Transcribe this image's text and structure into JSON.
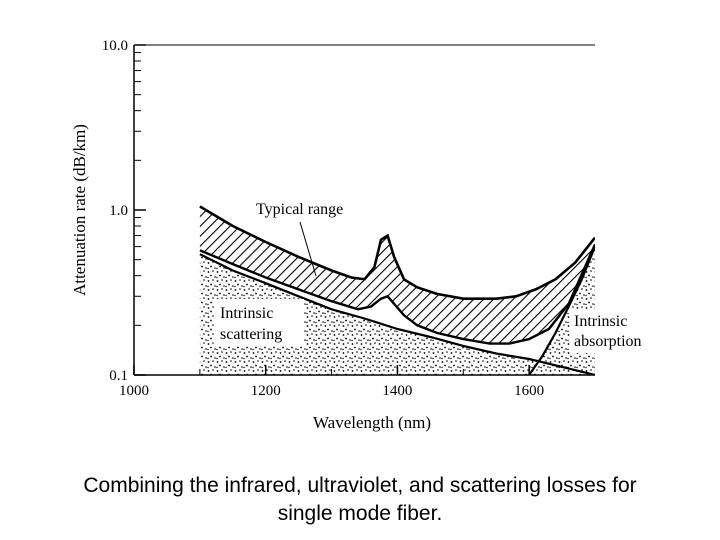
{
  "chart_data": {
    "type": "line",
    "yscale": "log",
    "xlim": [
      1000,
      1700
    ],
    "ylim": [
      0.1,
      10.0
    ],
    "xlabel": "Wavelength (nm)",
    "ylabel": "Attenuation rate (dB/km)",
    "x_ticks": [
      1000,
      1200,
      1400,
      1600
    ],
    "x_tick_labels": [
      "1000",
      "1200",
      "1400",
      "1600"
    ],
    "y_ticks": [
      0.1,
      1.0,
      10.0
    ],
    "y_tick_labels": [
      "0.1",
      "1.0",
      "10.0"
    ],
    "grid": false,
    "series": [
      {
        "name": "Typical range (upper bound)",
        "x": [
          1100,
          1150,
          1200,
          1250,
          1300,
          1330,
          1350,
          1365,
          1375,
          1385,
          1395,
          1410,
          1430,
          1460,
          1500,
          1550,
          1580,
          1610,
          1640,
          1670,
          1700
        ],
        "y": [
          1.05,
          0.8,
          0.64,
          0.52,
          0.43,
          0.39,
          0.38,
          0.45,
          0.66,
          0.7,
          0.52,
          0.38,
          0.34,
          0.31,
          0.29,
          0.29,
          0.3,
          0.33,
          0.38,
          0.48,
          0.68
        ]
      },
      {
        "name": "Typical range (lower bound)",
        "x": [
          1100,
          1150,
          1200,
          1250,
          1300,
          1340,
          1360,
          1375,
          1385,
          1395,
          1410,
          1430,
          1460,
          1500,
          1540,
          1570,
          1600,
          1630,
          1660,
          1700
        ],
        "y": [
          0.57,
          0.47,
          0.39,
          0.33,
          0.28,
          0.25,
          0.26,
          0.29,
          0.3,
          0.27,
          0.23,
          0.2,
          0.18,
          0.165,
          0.155,
          0.155,
          0.165,
          0.19,
          0.27,
          0.62
        ]
      },
      {
        "name": "Intrinsic scattering",
        "x": [
          1100,
          1150,
          1200,
          1250,
          1300,
          1350,
          1400,
          1450,
          1500,
          1550,
          1600,
          1650,
          1700
        ],
        "y": [
          0.54,
          0.43,
          0.36,
          0.3,
          0.25,
          0.22,
          0.19,
          0.17,
          0.15,
          0.135,
          0.125,
          0.112,
          0.1
        ]
      },
      {
        "name": "Intrinsic absorption",
        "x": [
          1600,
          1620,
          1640,
          1660,
          1680,
          1700
        ],
        "y": [
          0.1,
          0.13,
          0.18,
          0.26,
          0.38,
          0.6
        ]
      }
    ],
    "annotations": [
      {
        "text": "Typical range"
      },
      {
        "text": "Intrinsic",
        "text2": "scattering"
      },
      {
        "text": "Intrinsic",
        "text2": "absorption"
      }
    ]
  },
  "caption": {
    "line1": "Combining the infrared, ultraviolet, and scattering losses for",
    "line2": "single mode fiber."
  }
}
